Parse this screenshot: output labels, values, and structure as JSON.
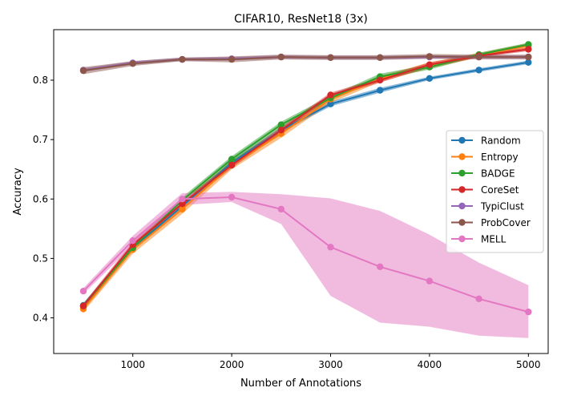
{
  "chart_data": {
    "type": "line",
    "title": "CIFAR10, ResNet18 (3x)",
    "xlabel": "Number of Annotations",
    "ylabel": "Accuracy",
    "xlim": [
      200,
      5200
    ],
    "ylim": [
      0.34,
      0.885
    ],
    "xticks": [
      1000,
      2000,
      3000,
      4000,
      5000
    ],
    "yticks": [
      0.4,
      0.5,
      0.6,
      0.7,
      0.8
    ],
    "ytick_labels": [
      "0.4",
      "0.5",
      "0.6",
      "0.7",
      "0.8"
    ],
    "grid": false,
    "legend_position": "center-right",
    "x": [
      500,
      1000,
      1500,
      2000,
      2500,
      3000,
      3500,
      4000,
      4500,
      5000
    ],
    "series": [
      {
        "name": "Random",
        "color": "#1f77b4",
        "values": [
          0.421,
          0.517,
          0.588,
          0.661,
          0.716,
          0.76,
          0.783,
          0.803,
          0.817,
          0.83
        ],
        "lower": [
          0.417,
          0.513,
          0.584,
          0.657,
          0.712,
          0.756,
          0.779,
          0.8,
          0.814,
          0.827
        ],
        "upper": [
          0.425,
          0.521,
          0.592,
          0.665,
          0.72,
          0.764,
          0.787,
          0.806,
          0.82,
          0.833
        ]
      },
      {
        "name": "Entropy",
        "color": "#ff7f0e",
        "values": [
          0.415,
          0.515,
          0.583,
          0.657,
          0.71,
          0.768,
          0.802,
          0.825,
          0.842,
          0.858
        ],
        "lower": [
          0.41,
          0.508,
          0.575,
          0.65,
          0.703,
          0.762,
          0.797,
          0.82,
          0.838,
          0.854
        ],
        "upper": [
          0.42,
          0.522,
          0.591,
          0.664,
          0.717,
          0.774,
          0.807,
          0.83,
          0.846,
          0.862
        ]
      },
      {
        "name": "BADGE",
        "color": "#2ca02c",
        "values": [
          0.42,
          0.518,
          0.598,
          0.667,
          0.725,
          0.77,
          0.806,
          0.822,
          0.843,
          0.86
        ],
        "lower": [
          0.416,
          0.513,
          0.593,
          0.662,
          0.72,
          0.766,
          0.801,
          0.818,
          0.84,
          0.857
        ],
        "upper": [
          0.424,
          0.523,
          0.603,
          0.672,
          0.73,
          0.774,
          0.811,
          0.826,
          0.846,
          0.863
        ]
      },
      {
        "name": "CoreSet",
        "color": "#d62728",
        "values": [
          0.42,
          0.523,
          0.592,
          0.657,
          0.716,
          0.775,
          0.8,
          0.826,
          0.841,
          0.852
        ],
        "lower": [
          0.416,
          0.518,
          0.587,
          0.652,
          0.711,
          0.771,
          0.796,
          0.822,
          0.838,
          0.849
        ],
        "upper": [
          0.424,
          0.528,
          0.597,
          0.662,
          0.721,
          0.779,
          0.804,
          0.83,
          0.844,
          0.855
        ]
      },
      {
        "name": "TypiClust",
        "color": "#9467bd",
        "values": [
          0.817,
          0.829,
          0.835,
          0.836,
          0.839,
          0.838,
          0.838,
          0.839,
          0.839,
          0.839
        ],
        "lower": [
          0.814,
          0.826,
          0.832,
          0.833,
          0.836,
          0.835,
          0.835,
          0.836,
          0.836,
          0.836
        ],
        "upper": [
          0.82,
          0.832,
          0.838,
          0.839,
          0.842,
          0.841,
          0.841,
          0.842,
          0.842,
          0.842
        ]
      },
      {
        "name": "ProbCover",
        "color": "#8c564b",
        "values": [
          0.816,
          0.828,
          0.835,
          0.835,
          0.839,
          0.838,
          0.838,
          0.84,
          0.839,
          0.839
        ],
        "lower": [
          0.81,
          0.824,
          0.832,
          0.83,
          0.835,
          0.834,
          0.834,
          0.836,
          0.835,
          0.835
        ],
        "upper": [
          0.822,
          0.832,
          0.838,
          0.84,
          0.843,
          0.842,
          0.842,
          0.844,
          0.843,
          0.843
        ]
      },
      {
        "name": "MELL",
        "color": "#e377c2",
        "values": [
          0.445,
          0.53,
          0.6,
          0.603,
          0.583,
          0.519,
          0.486,
          0.462,
          0.432,
          0.41
        ],
        "lower": [
          0.44,
          0.522,
          0.59,
          0.595,
          0.558,
          0.437,
          0.392,
          0.385,
          0.37,
          0.366
        ],
        "upper": [
          0.45,
          0.538,
          0.61,
          0.612,
          0.608,
          0.601,
          0.58,
          0.54,
          0.493,
          0.455
        ]
      }
    ]
  }
}
